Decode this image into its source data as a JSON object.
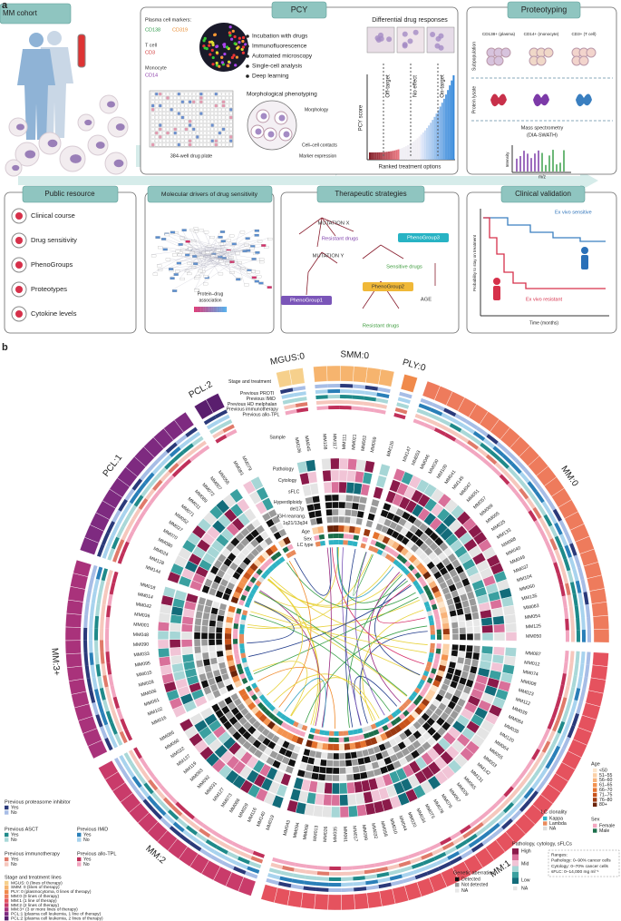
{
  "panel_a": {
    "label": "a",
    "mm_cohort": {
      "title": "MM cohort"
    },
    "pcy": {
      "title": "PCY",
      "markers_title": "Plasma cell markers:",
      "markers": [
        {
          "label": "CD138",
          "color": "#2e9a4a"
        },
        {
          "label": "CD319",
          "color": "#e8892c"
        },
        {
          "label": "T cell",
          "color": "#333333"
        },
        {
          "label": "CD3",
          "color": "#d03030"
        },
        {
          "label": "Monocyte",
          "color": "#333333"
        },
        {
          "label": "CD14",
          "color": "#8a3aa8"
        }
      ],
      "steps": [
        "Incubation with drugs",
        "Immunofluorescence",
        "Automated microscopy",
        "Single-cell analysis",
        "Deep learning"
      ],
      "plate": "384-well drug plate",
      "phenotyping": "Morphological phenotyping",
      "features": [
        "Morphology",
        "Cell–cell contacts",
        "Marker expression"
      ],
      "responses_title": "Differential drug responses",
      "response_types": [
        "Off-target",
        "No effect",
        "On-target"
      ],
      "y_label": "PCY score",
      "x_label": "Ranked treatment options"
    },
    "proteotyping": {
      "title": "Proteotyping",
      "populations": [
        "CD138+ (plasma)",
        "CD14+ (monocyte)",
        "CD3+ (T cell)"
      ],
      "rows": [
        "Subpopulation",
        "Protein lysate"
      ],
      "ms": [
        "Mass spectrometry",
        "(DIA-SWATH)"
      ],
      "y_label": "Intensity",
      "x_label": "m/z"
    },
    "public_resource": {
      "title": "Public resource",
      "items": [
        "Clinical course",
        "Drug sensitivity",
        "PhenoGroups",
        "Proteotypes",
        "Cytokine levels"
      ]
    },
    "molecular_drivers": {
      "title": "Molecular drivers of drug sensitivity",
      "legend": [
        "Protein–drug",
        "association"
      ]
    },
    "therapeutic_strategies": {
      "title": "Therapeutic strategies",
      "labels": [
        "MUTATION X",
        "MUTATION Y",
        "Resistant drugs",
        "PhenoGroup3",
        "Sensitive drugs",
        "PhenoGroup1",
        "PhenoGroup2",
        "Resistant drugs",
        "AGE"
      ]
    },
    "clinical_validation": {
      "title": "Clinical validation",
      "curves": [
        "Ex vivo sensitive",
        "Ex vivo resistant"
      ],
      "y_label": "Probability to stay on treatment",
      "x_label": "Time (months)"
    }
  },
  "panel_b": {
    "label": "b",
    "groups": [
      {
        "name": "MGUS:0",
        "description": "MGUS: 0 (lines of therapy)",
        "color": "#f6d08c",
        "samples": [
          "MM106",
          "MM045"
        ]
      },
      {
        "name": "SMM:0",
        "description": "SMM: 0 (lines of therapy)",
        "color": "#f6b46e",
        "samples": [
          "MM108",
          "MM117",
          "MM111",
          "MM021",
          "MM002",
          "MM059"
        ]
      },
      {
        "name": "PLY:0",
        "description": "PLY: 0 (plasmocytoma, 0 lines of therapy)",
        "color": "#f08a4b",
        "samples": [
          "MM126"
        ]
      },
      {
        "name": "MM:0",
        "description": "MM:0 (0 lines of therapy)",
        "color": "#ee7b5c",
        "samples": [
          "MM147",
          "MM053",
          "MM046",
          "MM030",
          "MM100",
          "MM041",
          "MM145",
          "MM047",
          "MM051",
          "MM057",
          "MM069",
          "MM005",
          "MM025",
          "MM133",
          "MM088",
          "MM040",
          "MM049",
          "MM037",
          "MM104",
          "MM060",
          "MM135",
          "MM063",
          "MM054",
          "MM125",
          "MM050"
        ]
      },
      {
        "name": "MM:1",
        "description": "MM:1 (1 line of therapy)",
        "color": "#e5525e",
        "samples": [
          "MM087",
          "MM012",
          "MM074",
          "MM008",
          "MM023",
          "MM112",
          "MM039",
          "MM084",
          "MM038",
          "MM120",
          "MM064",
          "MM055",
          "MM003",
          "MM142",
          "MM131",
          "MM065",
          "MM009",
          "MM067",
          "MM076",
          "MM078",
          "MM075",
          "MM034",
          "MM020",
          "MM044",
          "MM010",
          "MM058",
          "MM032",
          "MM099",
          "MM017",
          "MM061",
          "MM035",
          "MM026",
          "MM013",
          "MM068",
          "MM094",
          "MM043"
        ]
      },
      {
        "name": "MM:2",
        "description": "MM:2 (2 lines of therapy)",
        "color": "#c93b6a",
        "samples": [
          "MM019",
          "MM140",
          "MM116",
          "MM029",
          "MM086",
          "MM073",
          "MM127",
          "MM031",
          "MM092",
          "MM093",
          "MM119",
          "MM137",
          "MM022",
          "MM066",
          "MM085"
        ]
      },
      {
        "name": "MM:3+",
        "description": "MM:3+ (3 or more lines of therapy)",
        "color": "#a9327b",
        "samples": [
          "MM016",
          "MM102",
          "MM091",
          "MM006",
          "MM028",
          "MM015",
          "MM095",
          "MM033",
          "MM090",
          "MM048",
          "MM001",
          "MM036",
          "MM042",
          "MM014",
          "MM018"
        ]
      },
      {
        "name": "PCL:1",
        "description": "PCL:1 (plasma cell leukemia, 1 line of therapy)",
        "color": "#7e2a80",
        "samples": [
          "MM144",
          "MM128",
          "MM024",
          "MM080",
          "MM070",
          "MM027",
          "MM052",
          "MM071",
          "MM011",
          "MM089",
          "MM072",
          "MM007",
          "MM056"
        ]
      },
      {
        "name": "PCL:2",
        "description": "PCL:2 (plasma cell leukemia, 2 lines of therapy)",
        "color": "#5a1e6e",
        "samples": [
          "MM083",
          "MM079"
        ]
      }
    ],
    "tracks": [
      "Stage and treatment",
      "Previous PROTI",
      "Previous IMiD",
      "Previous HD melphalan",
      "Previous immunotherapy",
      "Previous allo-TPL",
      "Sample",
      "Pathology",
      "Cytology",
      "sFLC",
      "Hyperdiploidy",
      "del17p",
      "IGH rearrang.",
      "1q21/13q34",
      "Age",
      "Sex",
      "LC type"
    ],
    "legends": {
      "binary": [
        {
          "title": "Previous proteasome inhibitor",
          "entries": [
            {
              "label": "Yes",
              "color": "#2b3a7a"
            },
            {
              "label": "No",
              "color": "#a7bde6"
            }
          ]
        },
        {
          "title": "Previous ASCT",
          "entries": [
            {
              "label": "Yes",
              "color": "#1f8a8a"
            },
            {
              "label": "No",
              "color": "#a9d8d8"
            }
          ]
        },
        {
          "title": "Previous IMiD",
          "entries": [
            {
              "label": "Yes",
              "color": "#2a7fb8"
            },
            {
              "label": "No",
              "color": "#a8d3ee"
            }
          ]
        },
        {
          "title": "Previous immunotherapy",
          "entries": [
            {
              "label": "Yes",
              "color": "#e07a6a"
            },
            {
              "label": "No",
              "color": "#f6c7bd"
            }
          ]
        },
        {
          "title": "Previous allo-TPL",
          "entries": [
            {
              "label": "Yes",
              "color": "#c0305a"
            },
            {
              "label": "No",
              "color": "#f2a6c0"
            }
          ]
        }
      ],
      "stage_title": "Stage and treatment lines",
      "age": {
        "title": "Age",
        "entries": [
          {
            "label": "<50",
            "color": "#fde6cc"
          },
          {
            "label": "51–55",
            "color": "#fbd0a6"
          },
          {
            "label": "56–60",
            "color": "#f8b37a"
          },
          {
            "label": "61–65",
            "color": "#f39350"
          },
          {
            "label": "66–70",
            "color": "#e5722d"
          },
          {
            "label": "71–75",
            "color": "#c9541c"
          },
          {
            "label": "76–80",
            "color": "#9c3a12"
          },
          {
            "label": "80+",
            "color": "#6b240a"
          }
        ]
      },
      "sex": {
        "title": "Sex",
        "entries": [
          {
            "label": "Female",
            "color": "#f3a6c0"
          },
          {
            "label": "Male",
            "color": "#1b6e4a"
          }
        ]
      },
      "lc": {
        "title": "LC clonality",
        "entries": [
          {
            "label": "Kappa",
            "color": "#2fb3c4"
          },
          {
            "label": "Lambda",
            "color": "#e98a5b"
          },
          {
            "label": "NA",
            "color": "#dddddd"
          }
        ]
      },
      "continuous": {
        "title": "Pathology, cytology, sFLCs",
        "scale": [
          "High",
          "Mid",
          "Low",
          "NA"
        ],
        "colors": [
          "#8b1a4a",
          "#d9709a",
          "#f1c4d6",
          "#a6d6d6",
          "#3aa0a0",
          "#136c7a",
          "#e4e4e4"
        ],
        "ranges": [
          "Ranges:",
          "Pathology: 0–90% cancer cells",
          "Cytology: 0–70% cancer cells",
          "sFLC: 0–14,000 mg ml⁻¹"
        ]
      },
      "genetic": {
        "title": "Genetic aberration",
        "entries": [
          {
            "label": "Detected",
            "color": "#111111"
          },
          {
            "label": "Not detected",
            "color": "#9a9a9a"
          },
          {
            "label": "NA",
            "color": "#e8e8e8"
          }
        ]
      }
    }
  }
}
